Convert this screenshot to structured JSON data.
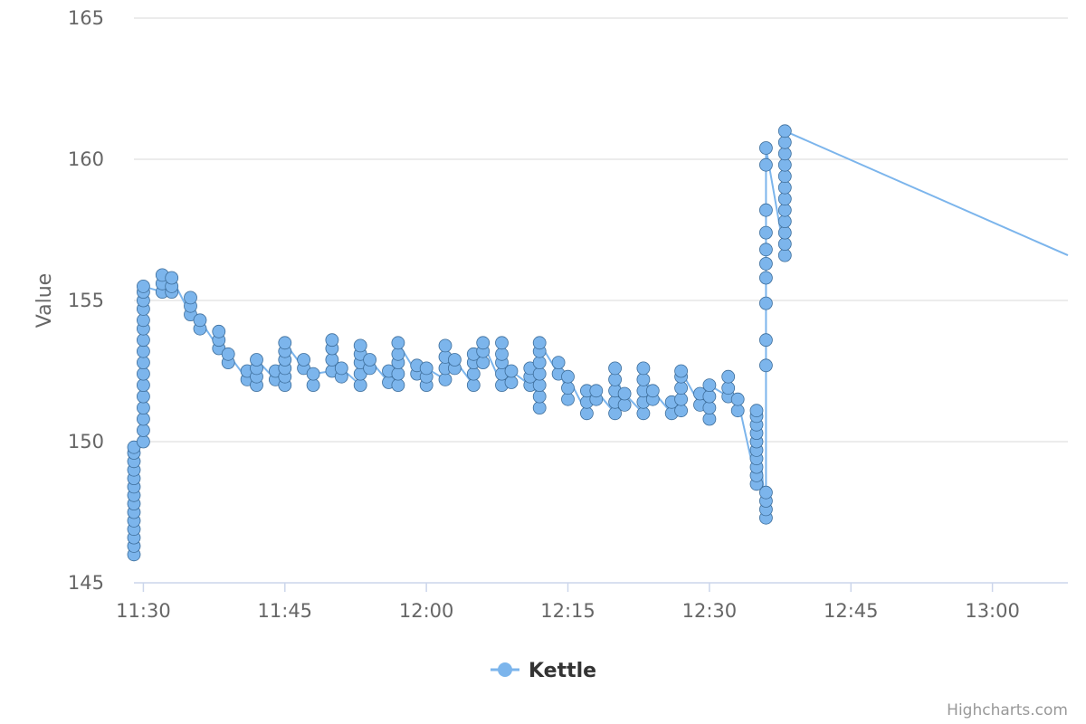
{
  "chart_data": {
    "type": "line",
    "title": "",
    "xlabel": "",
    "ylabel": "Value",
    "x_ticks": [
      "11:30",
      "11:45",
      "12:00",
      "12:15",
      "12:30",
      "12:45",
      "13:00"
    ],
    "y_ticks": [
      145,
      150,
      155,
      160,
      165
    ],
    "xlim": [
      "11:29",
      "13:08"
    ],
    "ylim": [
      145,
      165
    ],
    "grid": true,
    "legend_position": "bottom-center",
    "credits": "Highcharts.com",
    "series": [
      {
        "name": "Kettle",
        "color": "#7cb5ec",
        "marker": "circle",
        "points": [
          [
            "11:29",
            [
              146.0,
              146.3,
              146.6,
              146.9,
              147.2,
              147.5,
              147.8,
              148.1,
              148.4,
              148.7,
              149.0,
              149.3,
              149.6,
              149.8
            ]
          ],
          [
            "11:30",
            [
              150.0,
              150.4,
              150.8,
              151.2,
              151.6,
              152.0,
              152.4,
              152.8,
              153.2,
              153.6,
              154.0,
              154.3,
              154.7,
              155.0,
              155.3,
              155.5
            ]
          ],
          [
            "11:32",
            [
              155.3,
              155.6,
              155.9
            ]
          ],
          [
            "11:33",
            [
              155.3,
              155.5,
              155.8
            ]
          ],
          [
            "11:35",
            [
              154.5,
              154.8,
              155.1
            ]
          ],
          [
            "11:36",
            [
              154.0,
              154.3
            ]
          ],
          [
            "11:38",
            [
              153.3,
              153.6,
              153.9
            ]
          ],
          [
            "11:39",
            [
              152.8,
              153.1
            ]
          ],
          [
            "11:41",
            [
              152.2,
              152.5
            ]
          ],
          [
            "11:42",
            [
              152.0,
              152.3,
              152.6,
              152.9
            ]
          ],
          [
            "11:44",
            [
              152.2,
              152.5
            ]
          ],
          [
            "11:45",
            [
              152.0,
              152.3,
              152.6,
              152.9,
              153.2,
              153.5
            ]
          ],
          [
            "11:47",
            [
              152.6,
              152.9
            ]
          ],
          [
            "11:48",
            [
              152.0,
              152.4
            ]
          ],
          [
            "11:50",
            [
              152.5,
              152.9,
              153.3,
              153.6
            ]
          ],
          [
            "11:51",
            [
              152.3,
              152.6
            ]
          ],
          [
            "11:53",
            [
              152.0,
              152.4,
              152.8,
              153.1,
              153.4
            ]
          ],
          [
            "11:54",
            [
              152.6,
              152.9
            ]
          ],
          [
            "11:56",
            [
              152.1,
              152.5
            ]
          ],
          [
            "11:57",
            [
              152.0,
              152.4,
              152.8,
              153.1,
              153.5
            ]
          ],
          [
            "11:59",
            [
              152.4,
              152.7
            ]
          ],
          [
            "12:00",
            [
              152.0,
              152.3,
              152.6
            ]
          ],
          [
            "12:02",
            [
              152.2,
              152.6,
              153.0,
              153.4
            ]
          ],
          [
            "12:03",
            [
              152.6,
              152.9
            ]
          ],
          [
            "12:05",
            [
              152.0,
              152.4,
              152.8,
              153.1
            ]
          ],
          [
            "12:06",
            [
              152.8,
              153.2,
              153.5
            ]
          ],
          [
            "12:08",
            [
              152.0,
              152.4,
              152.8,
              153.1,
              153.5
            ]
          ],
          [
            "12:09",
            [
              152.1,
              152.5
            ]
          ],
          [
            "12:11",
            [
              152.0,
              152.3,
              152.6
            ]
          ],
          [
            "12:12",
            [
              151.2,
              151.6,
              152.0,
              152.4,
              152.8,
              153.2,
              153.5
            ]
          ],
          [
            "12:14",
            [
              152.4,
              152.8
            ]
          ],
          [
            "12:15",
            [
              151.5,
              151.9,
              152.3
            ]
          ],
          [
            "12:17",
            [
              151.0,
              151.4,
              151.8
            ]
          ],
          [
            "12:18",
            [
              151.5,
              151.8
            ]
          ],
          [
            "12:20",
            [
              151.0,
              151.4,
              151.8,
              152.2,
              152.6
            ]
          ],
          [
            "12:21",
            [
              151.3,
              151.7
            ]
          ],
          [
            "12:23",
            [
              151.0,
              151.4,
              151.8,
              152.2,
              152.6
            ]
          ],
          [
            "12:24",
            [
              151.5,
              151.8
            ]
          ],
          [
            "12:26",
            [
              151.0,
              151.4
            ]
          ],
          [
            "12:27",
            [
              151.1,
              151.5,
              151.9,
              152.3,
              152.5
            ]
          ],
          [
            "12:29",
            [
              151.3,
              151.7
            ]
          ],
          [
            "12:30",
            [
              150.8,
              151.2,
              151.6,
              152.0
            ]
          ],
          [
            "12:32",
            [
              151.6,
              151.9,
              152.3
            ]
          ],
          [
            "12:33",
            [
              151.1,
              151.5
            ]
          ],
          [
            "12:35",
            [
              148.5,
              148.8,
              149.1,
              149.4,
              149.7,
              150.0,
              150.3,
              150.6,
              150.9,
              151.1
            ]
          ],
          [
            "12:36",
            [
              147.3,
              147.6,
              147.9,
              148.2,
              152.7,
              153.6,
              154.9,
              155.8,
              156.3,
              156.8,
              157.4,
              158.2,
              159.8,
              160.4
            ]
          ],
          [
            "12:38",
            [
              156.6,
              157.0,
              157.4,
              157.8,
              158.2,
              158.6,
              159.0,
              159.4,
              159.8,
              160.2,
              160.6,
              161.0
            ]
          ]
        ]
      }
    ]
  }
}
